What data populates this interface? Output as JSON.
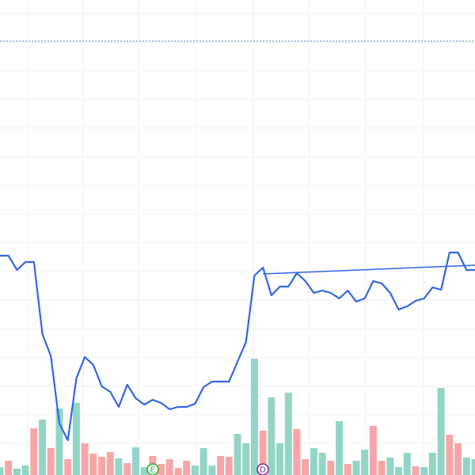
{
  "chart_data": {
    "type": "line",
    "series": [
      {
        "color": "#2f66e8",
        "values": [
          277,
          277,
          259,
          269,
          269,
          178,
          150,
          65,
          44,
          122,
          149,
          139,
          112,
          105,
          86,
          114,
          97,
          89,
          95,
          91,
          83,
          86,
          86,
          90,
          111,
          118,
          118,
          118,
          143,
          168,
          252,
          262,
          227,
          238,
          238,
          255,
          245,
          230,
          233,
          230,
          223,
          233,
          219,
          223,
          245,
          242,
          230,
          209,
          213,
          220,
          223,
          237,
          234,
          281,
          281,
          259,
          259
        ]
      }
    ],
    "volume": {
      "values": [
        10,
        18,
        8,
        12,
        59,
        70,
        34,
        84,
        20,
        91,
        40,
        27,
        23,
        29,
        21,
        15,
        35,
        10,
        24,
        14,
        20,
        9,
        18,
        12,
        34,
        12,
        24,
        23,
        52,
        40,
        147,
        56,
        98,
        40,
        104,
        58,
        20,
        34,
        28,
        18,
        68,
        14,
        18,
        32,
        62,
        18,
        22,
        10,
        28,
        11,
        10,
        28,
        110,
        51,
        40,
        22,
        20
      ],
      "colors": [
        "#92d5c6",
        "#f7a6a8",
        "#92d5c6",
        "#92d5c6",
        "#f7a6a8",
        "#92d5c6",
        "#f7a6a8",
        "#92d5c6",
        "#f7a6a8",
        "#92d5c6",
        "#f7a6a8",
        "#f7a6a8",
        "#f7a6a8",
        "#f7a6a8",
        "#92d5c6",
        "#f7a6a8",
        "#92d5c6",
        "#92d5c6",
        "#f7a6a8",
        "#f7a6a8",
        "#f7a6a8",
        "#f7a6a8",
        "#f7a6a8",
        "#92d5c6",
        "#92d5c6",
        "#92d5c6",
        "#f7a6a8",
        "#f7a6a8",
        "#92d5c6",
        "#92d5c6",
        "#92d5c6",
        "#f7a6a8",
        "#92d5c6",
        "#92d5c6",
        "#92d5c6",
        "#f7a6a8",
        "#f7a6a8",
        "#92d5c6",
        "#92d5c6",
        "#f7a6a8",
        "#92d5c6",
        "#f7a6a8",
        "#92d5c6",
        "#92d5c6",
        "#f7a6a8",
        "#f7a6a8",
        "#92d5c6",
        "#92d5c6",
        "#92d5c6",
        "#f7a6a8",
        "#92d5c6",
        "#92d5c6",
        "#92d5c6",
        "#f7a6a8",
        "#f7a6a8",
        "#92d5c6",
        "#92d5c6"
      ]
    },
    "ylim": [
      0,
      600
    ],
    "reference_line": {
      "value": 548,
      "color": "#4f7fe8"
    },
    "trend": {
      "start": 31,
      "end": 56,
      "values": [
        254,
        265
      ],
      "color": "#2f66e8"
    },
    "markers": [
      {
        "label": "E",
        "color": "#22aa22"
      },
      {
        "label": "D",
        "color": "#882288"
      }
    ]
  }
}
